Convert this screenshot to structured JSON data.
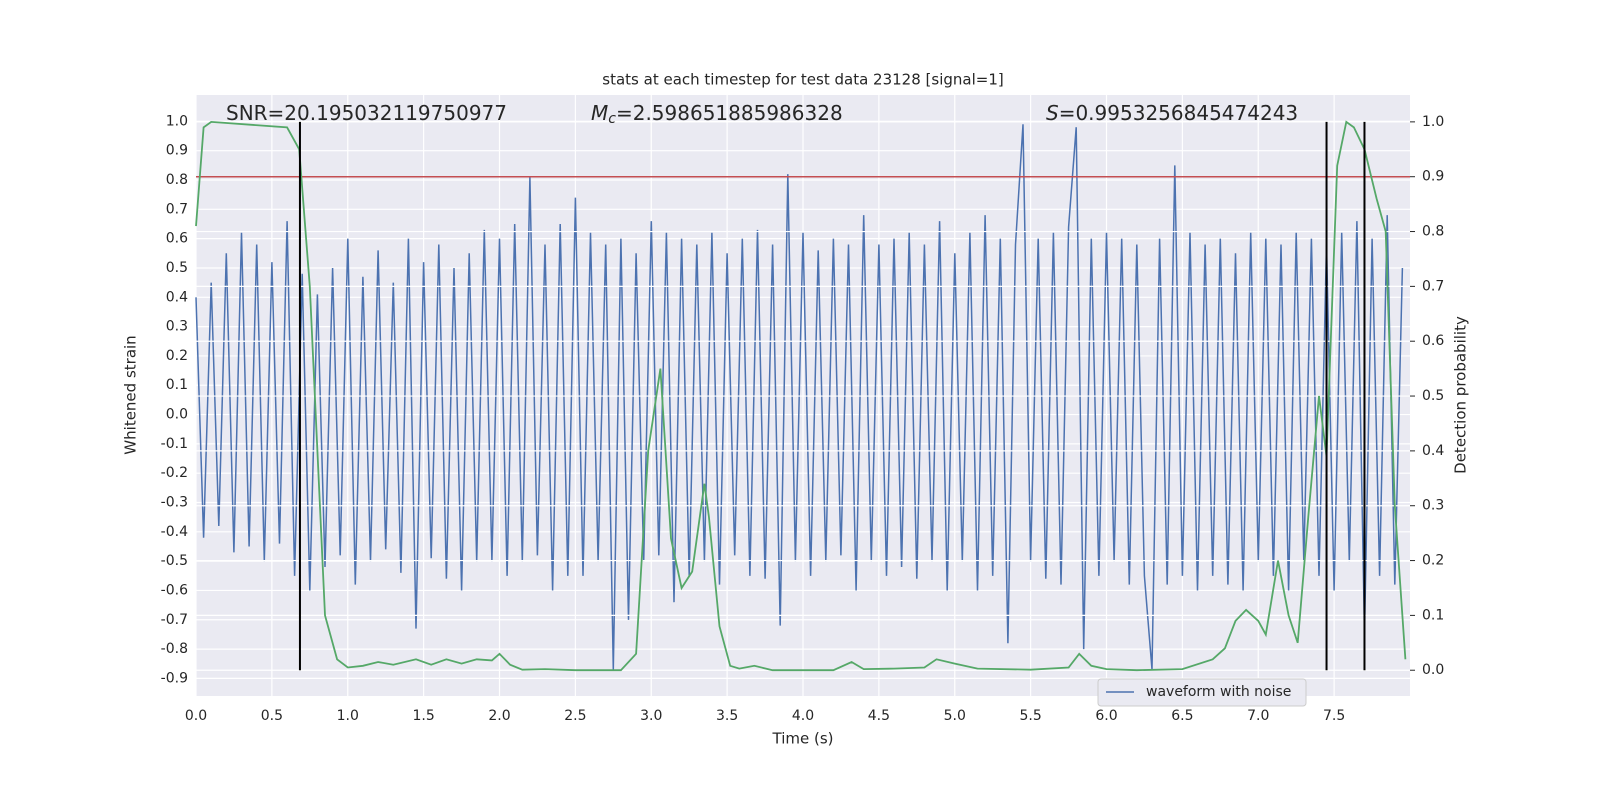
{
  "chart_data": {
    "type": "line",
    "title": "stats at each timestep for test data 23128 [signal=1]",
    "xlabel": "Time (s)",
    "ylabel": "Whitened strain",
    "y2label": "Detection probability",
    "annotations": [
      {
        "text": "SNR=20.195032119750977"
      },
      {
        "symbol": "M",
        "subscript": "c",
        "text": "=2.598651885986328"
      },
      {
        "symbol": "S",
        "text": "=0.9953256845474243"
      }
    ],
    "xlim": [
      0,
      8.0
    ],
    "ylim": [
      -0.96,
      1.09
    ],
    "y2lim": [
      -0.047,
      1.049
    ],
    "xticks": [
      {
        "value": 0,
        "label": "0.0"
      },
      0.5,
      {
        "value": 1,
        "label": "1.0"
      },
      1.5,
      {
        "value": 2,
        "label": "2.0"
      },
      2.5,
      {
        "value": 3,
        "label": "3.0"
      },
      3.5,
      {
        "value": 4,
        "label": "4.0"
      },
      4.5,
      {
        "value": 5,
        "label": "5.0"
      },
      5.5,
      {
        "value": 6,
        "label": "6.0"
      },
      6.5,
      {
        "value": 7,
        "label": "7.0"
      },
      7.5
    ],
    "yticks": [
      -0.9,
      -0.8,
      -0.7,
      -0.6,
      -0.5,
      -0.4,
      -0.3,
      -0.2,
      -0.1,
      {
        "value": 0,
        "label": "0.0"
      },
      0.1,
      0.2,
      0.3,
      0.4,
      0.5,
      0.6,
      0.7,
      0.8,
      0.9,
      {
        "value": 1,
        "label": "1.0"
      }
    ],
    "y2ticks": [
      {
        "value": 0,
        "label": "0.0"
      },
      0.1,
      0.2,
      0.3,
      0.4,
      0.5,
      0.6,
      0.7,
      0.8,
      0.9,
      {
        "value": 1,
        "label": "1.0"
      }
    ],
    "grid": true,
    "legend": "lower right",
    "x": [
      0,
      0.05,
      0.1,
      0.15,
      0.2,
      0.25,
      0.3,
      0.35,
      0.4,
      0.45,
      0.5,
      0.55,
      0.6,
      0.65,
      0.7,
      0.75,
      0.8,
      0.85,
      0.9,
      0.95,
      1,
      1.05,
      1.1,
      1.15,
      1.2,
      1.25,
      1.3,
      1.35,
      1.4,
      1.45,
      1.5,
      1.55,
      1.6,
      1.65,
      1.7,
      1.75,
      1.8,
      1.85,
      1.9,
      1.95,
      2,
      2.05,
      2.1,
      2.15,
      2.2,
      2.25,
      2.3,
      2.35,
      2.4,
      2.45,
      2.5,
      2.55,
      2.6,
      2.65,
      2.7,
      2.75,
      2.8,
      2.85,
      2.9,
      2.95,
      3,
      3.05,
      3.1,
      3.15,
      3.2,
      3.25,
      3.3,
      3.35,
      3.4,
      3.45,
      3.5,
      3.55,
      3.6,
      3.65,
      3.7,
      3.75,
      3.8,
      3.85,
      3.9,
      3.95,
      4,
      4.05,
      4.1,
      4.15,
      4.2,
      4.25,
      4.3,
      4.35,
      4.4,
      4.45,
      4.5,
      4.55,
      4.6,
      4.65,
      4.7,
      4.75,
      4.8,
      4.85,
      4.9,
      4.95,
      5,
      5.05,
      5.1,
      5.15,
      5.2,
      5.25,
      5.3,
      5.35,
      5.4,
      5.45,
      5.5,
      5.55,
      5.6,
      5.65,
      5.7,
      5.75,
      5.8,
      5.85,
      5.9,
      5.95,
      6,
      6.05,
      6.1,
      6.15,
      6.2,
      6.25,
      6.3,
      6.35,
      6.4,
      6.45,
      6.5,
      6.55,
      6.6,
      6.65,
      6.7,
      6.75,
      6.8,
      6.85,
      6.9,
      6.95,
      7,
      7.05,
      7.1,
      7.15,
      7.2,
      7.25,
      7.3,
      7.35,
      7.4,
      7.45,
      7.5,
      7.55,
      7.6,
      7.65,
      7.7,
      7.75,
      7.8,
      7.85,
      7.9,
      7.95
    ],
    "series": [
      {
        "name": "waveform with noise",
        "color": "#4c72b0",
        "values": [
          0.4,
          -0.42,
          0.45,
          -0.38,
          0.55,
          -0.47,
          0.62,
          -0.45,
          0.58,
          -0.5,
          0.52,
          -0.44,
          0.66,
          -0.55,
          0.48,
          -0.6,
          0.41,
          -0.52,
          0.5,
          -0.48,
          0.6,
          -0.58,
          0.47,
          -0.5,
          0.56,
          -0.46,
          0.45,
          -0.54,
          0.6,
          -0.73,
          0.52,
          -0.49,
          0.58,
          -0.56,
          0.5,
          -0.6,
          0.55,
          -0.5,
          0.63,
          -0.5,
          0.6,
          -0.55,
          0.65,
          -0.5,
          0.81,
          -0.48,
          0.58,
          -0.6,
          0.65,
          -0.55,
          0.74,
          -0.55,
          0.62,
          -0.5,
          0.58,
          -0.87,
          0.6,
          -0.7,
          0.55,
          -0.5,
          0.66,
          -0.48,
          0.62,
          -0.64,
          0.6,
          -0.55,
          0.58,
          -0.5,
          0.62,
          -0.58,
          0.55,
          -0.48,
          0.6,
          -0.55,
          0.63,
          -0.56,
          0.58,
          -0.72,
          0.82,
          -0.5,
          0.62,
          -0.55,
          0.56,
          -0.5,
          0.6,
          -0.48,
          0.58,
          -0.6,
          0.68,
          -0.5,
          0.58,
          -0.55,
          0.6,
          -0.52,
          0.62,
          -0.56,
          0.58,
          -0.5,
          0.66,
          -0.6,
          0.55,
          -0.5,
          0.62,
          -0.6,
          0.68,
          -0.55,
          0.6,
          -0.78,
          0.58,
          0.99,
          -0.5,
          0.6,
          -0.56,
          0.62,
          -0.58,
          0.64,
          0.98,
          -0.8,
          0.6,
          -0.55,
          0.62,
          -0.5,
          0.6,
          -0.58,
          0.58,
          -0.55,
          -0.87,
          0.6,
          -0.58,
          0.85,
          -0.55,
          0.62,
          -0.6,
          0.58,
          -0.55,
          0.6,
          -0.58,
          0.55,
          -0.6,
          0.62,
          -0.5,
          0.6,
          -0.55,
          0.58,
          -0.6,
          0.62,
          -0.5,
          0.6,
          -0.55,
          0.58,
          -0.6,
          0.62,
          -0.5,
          0.66,
          -0.75,
          0.6,
          -0.55,
          0.68,
          -0.58,
          0.5
        ]
      },
      {
        "color": "#55a868",
        "axis": "y2",
        "x": [
          0,
          0.05,
          0.1,
          0.6,
          0.68,
          0.75,
          0.85,
          0.93,
          1,
          1.1,
          1.2,
          1.3,
          1.45,
          1.55,
          1.65,
          1.75,
          1.85,
          1.95,
          2,
          2.07,
          2.15,
          2.3,
          2.5,
          2.8,
          2.9,
          2.98,
          3.06,
          3.13,
          3.2,
          3.27,
          3.35,
          3.38,
          3.45,
          3.52,
          3.58,
          3.68,
          3.8,
          4.2,
          4.32,
          4.4,
          4.6,
          4.8,
          4.88,
          5,
          5.15,
          5.5,
          5.75,
          5.82,
          5.9,
          6,
          6.2,
          6.5,
          6.7,
          6.78,
          6.85,
          6.92,
          7,
          7.05,
          7.13,
          7.2,
          7.26,
          7.33,
          7.4,
          7.45,
          7.52,
          7.58,
          7.63,
          7.7,
          7.78,
          7.84,
          7.9,
          7.97
        ],
        "values": [
          0.81,
          0.99,
          1,
          0.99,
          0.95,
          0.7,
          0.1,
          0.02,
          0.005,
          0.008,
          0.015,
          0.01,
          0.02,
          0.01,
          0.02,
          0.012,
          0.02,
          0.018,
          0.03,
          0.01,
          0.001,
          0.002,
          0,
          0,
          0.03,
          0.4,
          0.55,
          0.24,
          0.15,
          0.18,
          0.34,
          0.28,
          0.08,
          0.008,
          0.003,
          0.008,
          0,
          0,
          0.015,
          0.002,
          0.003,
          0.005,
          0.02,
          0.012,
          0.003,
          0.001,
          0.005,
          0.03,
          0.008,
          0.002,
          0,
          0.002,
          0.02,
          0.04,
          0.09,
          0.11,
          0.09,
          0.065,
          0.2,
          0.1,
          0.05,
          0.28,
          0.5,
          0.39,
          0.92,
          1,
          0.99,
          0.95,
          0.86,
          0.8,
          0.3,
          0.02
        ]
      }
    ],
    "threshold": {
      "value": 0.9,
      "axis": "y2",
      "color": "#c44e52"
    },
    "vlines": {
      "x": [
        0.685,
        7.45,
        7.7
      ],
      "ymin": 0,
      "ymax": 1,
      "axis": "y2",
      "color": "#000000"
    }
  }
}
